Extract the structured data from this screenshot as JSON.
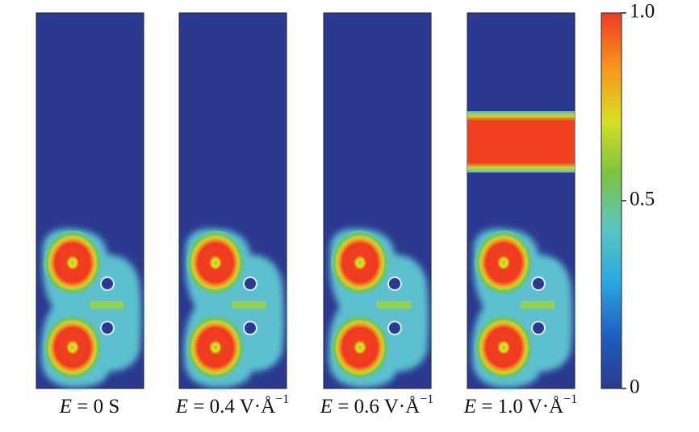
{
  "chart_data": {
    "type": "heatmap",
    "panels": [
      {
        "var": "E",
        "text": " = 0 S",
        "sup": ""
      },
      {
        "var": "E",
        "text": " = 0.4 V·Å",
        "sup": "−1"
      },
      {
        "var": "E",
        "text": " = 0.6 V·Å",
        "sup": "−1"
      },
      {
        "var": "E",
        "text": " = 1.0 V·Å",
        "sup": "−1"
      }
    ],
    "colorbar": {
      "lim": [
        0,
        1
      ],
      "ticks": [
        0,
        0.5,
        {
          "value": 1,
          "label": "1.0"
        }
      ],
      "colormap": [
        "#2b3990",
        "#1f5fc0",
        "#2aa9e0",
        "#5cc6c0",
        "#7cc242",
        "#d7df23",
        "#f7941d",
        "#ef3b24"
      ]
    }
  }
}
